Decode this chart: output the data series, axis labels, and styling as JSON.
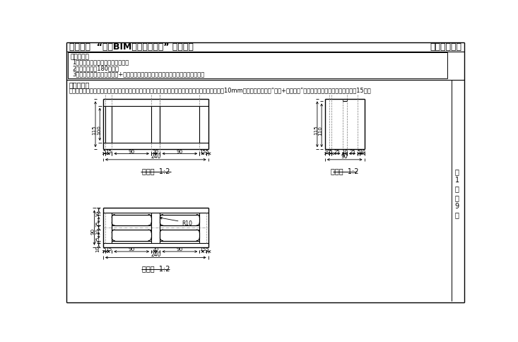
{
  "title_left": "第十三期  “全国BIM技能等级考试” 一级试题",
  "title_right": "中国图学学会",
  "exam_req_title": "考试要求：",
  "exam_req_items": [
    "1、考试方式：计算机操作，闭卷；",
    "2、考试时间为180分钟；",
    "3、新建文件夹（以准考证号+姓名命名），用于存放此次考试中生成的全部文件。"
  ],
  "section_title": "试题部分：",
  "q1_text": "一、根据给定的投影图及尺寸建立镂空混凝土墙体族模型，投影图中所有镂空图案的侧面角半径均为10mm，请将模型文件以“族块+考生姓名”为文件名保存到考生文件夹中。（15分）",
  "front_view_label": "主视图  1:2",
  "left_view_label": "左视图  1:2",
  "top_view_label": "俯视图  1:2",
  "page_chars": [
    "第",
    "1",
    "页",
    "共",
    "9",
    "页"
  ],
  "bg_color": "#ffffff"
}
